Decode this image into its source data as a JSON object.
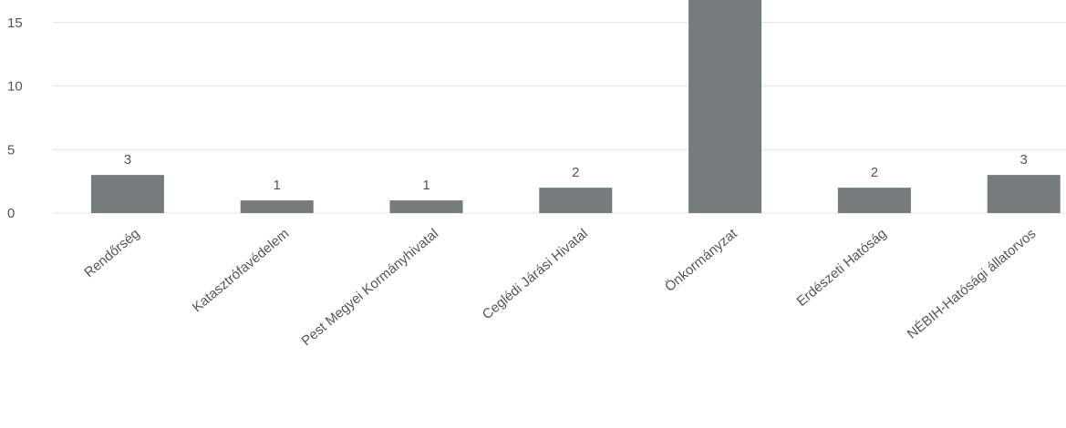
{
  "chart_data": {
    "type": "bar",
    "categories": [
      "Rendőrség",
      "Katasztrófavédelem",
      "Pest Megyei Kormányhivatal",
      "Ceglédi Járási Hivatal",
      "Önkormányzat",
      "Erdészeti Hatóság",
      "NÉBIH-Hatósági állatorvos"
    ],
    "values": [
      3,
      1,
      1,
      2,
      19,
      2,
      3
    ],
    "data_labels": [
      "3",
      "1",
      "1",
      "2",
      "",
      "2",
      "3"
    ],
    "yticks": [
      0,
      5,
      10,
      15
    ],
    "ylim": [
      0,
      17
    ],
    "grid": true,
    "title": "",
    "xlabel": "",
    "ylabel": "",
    "colors": {
      "bar": "#767b7b",
      "grid": "#e3e3e3",
      "text": "#555555"
    }
  }
}
